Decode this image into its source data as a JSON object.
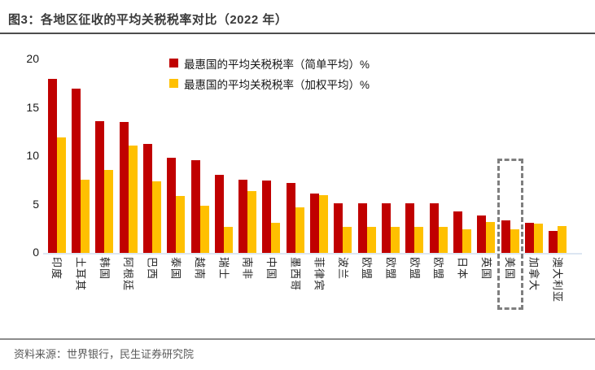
{
  "title": "图3：各地区征收的平均关税税率对比（2022 年）",
  "source": "资料来源：世界银行，民生证券研究院",
  "colors": {
    "series_simple": "#C00000",
    "series_weighted": "#FFC000",
    "highlight_box": "#7f7f7f",
    "baseline": "#dce6f2",
    "title_text": "#3a3a3a",
    "source_text": "#595959"
  },
  "chart_data": {
    "type": "bar",
    "title": "各地区征收的平均关税税率对比（2022 年）",
    "categories": [
      "印度",
      "土耳其",
      "韩国",
      "阿根廷",
      "巴西",
      "泰国",
      "越南",
      "瑞士",
      "南非",
      "中国",
      "墨西哥",
      "菲律宾",
      "波兰",
      "欧盟",
      "欧盟",
      "欧盟",
      "欧盟",
      "日本",
      "英国",
      "美国",
      "加拿大",
      "澳大利亚"
    ],
    "series": [
      {
        "name": "最惠国的平均关税税率（简单平均）%",
        "color": "#C00000",
        "values": [
          18.0,
          17.0,
          13.6,
          13.5,
          11.3,
          9.8,
          9.6,
          8.1,
          7.6,
          7.5,
          7.2,
          6.1,
          5.1,
          5.1,
          5.1,
          5.1,
          5.1,
          4.3,
          3.9,
          3.4,
          3.1,
          2.3
        ]
      },
      {
        "name": "最惠国的平均关税税率（加权平均）%",
        "color": "#FFC000",
        "values": [
          11.9,
          7.6,
          8.6,
          11.1,
          7.4,
          5.9,
          4.9,
          2.7,
          6.4,
          3.1,
          4.7,
          6.0,
          2.7,
          2.7,
          2.7,
          2.7,
          2.7,
          2.4,
          3.2,
          2.4,
          3.0,
          2.8
        ]
      }
    ],
    "xlabel": "",
    "ylabel": "",
    "ylim": [
      0,
      20
    ],
    "yticks": [
      0,
      5,
      10,
      15,
      20
    ],
    "grid": false,
    "legend_position": "top-center",
    "highlight": {
      "category": "美国",
      "index": 19
    }
  }
}
